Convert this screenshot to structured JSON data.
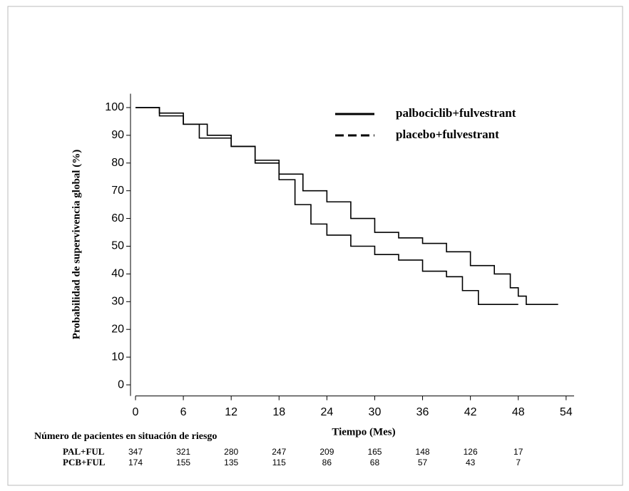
{
  "chart_data": {
    "type": "step",
    "x_label": "Tiempo (Mes)",
    "y_label": "Probabilidad de supervivencia global (%)",
    "xlim": [
      0,
      55
    ],
    "ylim": [
      -4,
      105
    ],
    "xticks": [
      0,
      6,
      12,
      18,
      24,
      30,
      36,
      42,
      48,
      54
    ],
    "yticks": [
      0,
      10,
      20,
      30,
      40,
      50,
      60,
      70,
      80,
      90,
      100
    ],
    "series": [
      {
        "name": "palbociclib+fulvestrant",
        "color": "#000000",
        "x": [
          0,
          3,
          6,
          9,
          12,
          15,
          18,
          21,
          24,
          27,
          30,
          33,
          36,
          39,
          42,
          45,
          47,
          48,
          49,
          53
        ],
        "y": [
          100,
          98,
          94,
          90,
          86,
          81,
          76,
          70,
          66,
          60,
          55,
          53,
          51,
          48,
          43,
          40,
          35,
          32,
          29,
          29
        ]
      },
      {
        "name": "placebo+fulvestrant",
        "color": "#000000",
        "x": [
          0,
          3,
          6,
          8,
          12,
          15,
          18,
          20,
          22,
          24,
          27,
          30,
          33,
          36,
          39,
          41,
          43,
          48
        ],
        "y": [
          100,
          97,
          94,
          89,
          86,
          80,
          74,
          65,
          58,
          54,
          50,
          47,
          45,
          41,
          39,
          34,
          29,
          29
        ]
      }
    ],
    "at_risk": {
      "title": "Número de pacientes en situación de riesgo",
      "times": [
        0,
        6,
        12,
        18,
        24,
        30,
        36,
        42,
        48
      ],
      "rows": [
        {
          "label": "PAL+FUL",
          "values": [
            347,
            321,
            280,
            247,
            209,
            165,
            148,
            126,
            17
          ]
        },
        {
          "label": "PCB+FUL",
          "values": [
            174,
            155,
            135,
            115,
            86,
            68,
            57,
            43,
            7
          ]
        }
      ]
    }
  }
}
